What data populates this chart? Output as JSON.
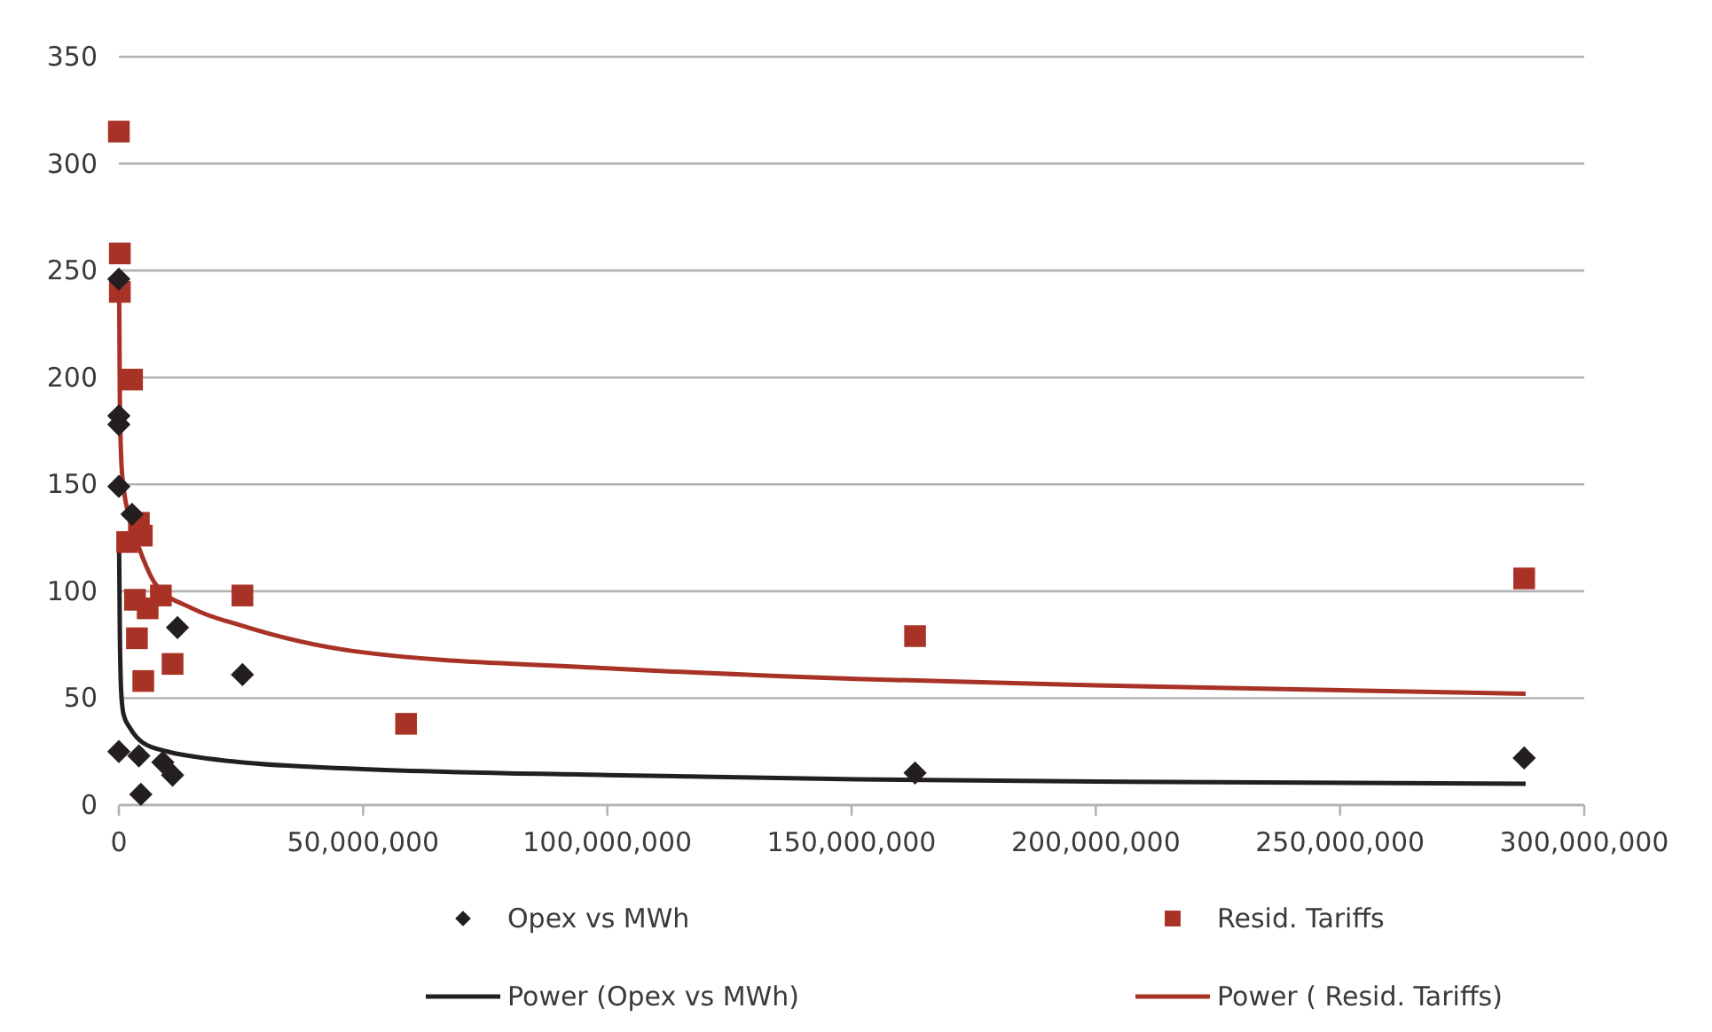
{
  "chart_data": {
    "type": "scatter",
    "xlim": [
      0,
      300000000
    ],
    "ylim": [
      0,
      350
    ],
    "xticks": [
      0,
      {
        "value": 50000000,
        "label": "50,000,000"
      },
      {
        "value": 100000000,
        "label": "100,000,000"
      },
      {
        "value": 150000000,
        "label": "150,000,000"
      },
      {
        "value": 200000000,
        "label": "200,000,000"
      },
      {
        "value": 250000000,
        "label": "250,000,000"
      },
      {
        "value": 300000000,
        "label": "300,000,000"
      }
    ],
    "yticks": [
      0,
      50,
      100,
      150,
      200,
      250,
      300,
      350
    ],
    "grid": "y",
    "legend": "bottom",
    "series": [
      {
        "name": "Opex vs MWh",
        "marker": "diamond",
        "color": "#231f20",
        "x": [
          0,
          0,
          0,
          0,
          2700000,
          12000000,
          25300000,
          0,
          4100000,
          9000000,
          11000000,
          4500000,
          163000000,
          287700000
        ],
        "values": [
          246,
          182,
          178,
          149,
          136,
          83,
          61,
          25,
          23,
          20,
          14,
          5,
          15,
          22
        ]
      },
      {
        "name": "Resid. Tariffs",
        "marker": "square",
        "color": "#a93226",
        "x": [
          0,
          200000,
          200000,
          2700000,
          1700000,
          4100000,
          4700000,
          3300000,
          5900000,
          8600000,
          3700000,
          11000000,
          5000000,
          25300000,
          58800000,
          163000000,
          287700000
        ],
        "values": [
          315,
          258,
          240,
          199,
          123,
          132,
          126,
          96,
          92,
          98,
          78,
          66,
          58,
          98,
          38,
          79,
          106
        ]
      },
      {
        "name": "Power (Opex vs MWh)",
        "type": "line",
        "marker": "none",
        "color": "#231f20",
        "x": [
          50000,
          200000,
          500000,
          1000000,
          2300000,
          5000000,
          10000000,
          14400000,
          25000000,
          48000000,
          100000000,
          151000000,
          200000000,
          288000000
        ],
        "values": [
          121,
          80,
          52,
          42,
          36,
          29,
          25,
          23,
          20,
          17,
          14,
          12,
          11,
          10
        ]
      },
      {
        "name": "Power ( Resid. Tariffs)",
        "type": "line",
        "marker": "none",
        "color": "#a93226",
        "x": [
          50000,
          200000,
          500000,
          1000000,
          2400000,
          5000000,
          7600000,
          15000000,
          25000000,
          48000000,
          100000000,
          151000000,
          200000000,
          288000000
        ],
        "values": [
          245,
          190,
          161,
          148,
          133,
          115,
          103,
          92,
          84,
          72,
          64,
          59,
          56,
          52
        ]
      }
    ]
  }
}
